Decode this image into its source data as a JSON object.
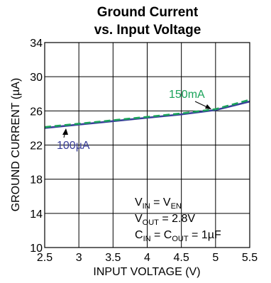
{
  "chart_data": {
    "type": "line",
    "title": "Ground Current",
    "subtitle": "vs. Input Voltage",
    "xlabel": "INPUT VOLTAGE (V)",
    "ylabel": "GROUND CURRENT (µA)",
    "xlim": [
      2.5,
      5.5
    ],
    "ylim": [
      10,
      34
    ],
    "xticks": [
      2.5,
      3,
      3.5,
      4,
      4.5,
      5,
      5.5
    ],
    "xtick_labels": [
      "2.5",
      "3",
      "3.5",
      "4",
      "4.5",
      "5",
      "5.5"
    ],
    "yticks": [
      10,
      14,
      18,
      22,
      26,
      30,
      34
    ],
    "ytick_labels": [
      "10",
      "14",
      "18",
      "22",
      "26",
      "30",
      "34"
    ],
    "grid": true,
    "series": [
      {
        "name": "100µA",
        "color": "#3a3f9a",
        "dash": "solid",
        "x": [
          2.5,
          3.0,
          3.5,
          4.0,
          4.5,
          5.0,
          5.5
        ],
        "y": [
          24.0,
          24.4,
          24.8,
          25.2,
          25.6,
          26.1,
          27.1
        ]
      },
      {
        "name": "150mA",
        "color": "#1aa35a",
        "dash": "dashed",
        "x": [
          2.5,
          3.0,
          3.5,
          4.0,
          4.5,
          5.0,
          5.5
        ],
        "y": [
          24.1,
          24.5,
          24.9,
          25.3,
          25.7,
          26.2,
          27.3
        ]
      }
    ],
    "conditions": {
      "line1": {
        "a": "V",
        "a_sub": "IN",
        "mid": " = V",
        "b_sub": "EN"
      },
      "line2": {
        "a": "V",
        "a_sub": "OUT",
        "rest": " = 2.8V"
      },
      "line3": {
        "a": "C",
        "a_sub": "IN",
        "mid": " = C",
        "b_sub": "OUT",
        "rest": " = 1µF"
      }
    }
  }
}
